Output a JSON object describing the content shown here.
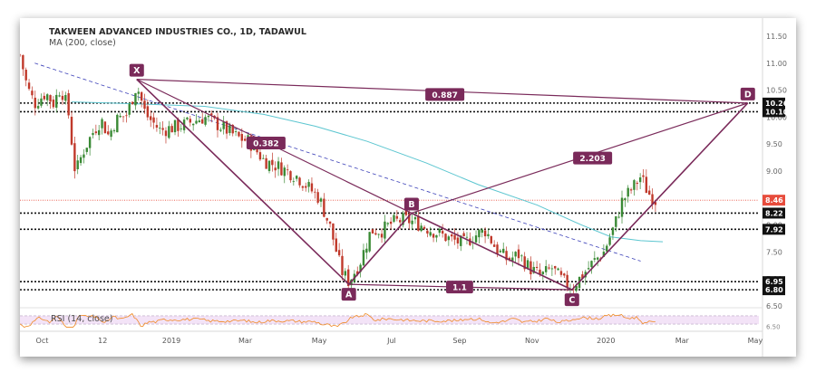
{
  "header": {
    "symbol": "TAKWEEN ADVANCED INDUSTRIES CO., 1D, TADAWUL",
    "ma_label": "MA (200, close)",
    "rsi_label": "RSI (14, close)"
  },
  "colors": {
    "pattern": "#7a2a5a",
    "candle_up": "#3a8a35",
    "candle_down": "#c0392b",
    "ma": "#5cc6d0",
    "trend": "#3b40b8",
    "current_price": "#e74c3c",
    "level_label_bg": "#111111",
    "rsi_line": "#f08a24",
    "rsi_band": "#f3e3f7"
  },
  "chart_data": {
    "type": "candlestick",
    "title": "TAKWEEN ADVANCED INDUSTRIES CO., 1D, TADAWUL",
    "indicator": "MA (200, close)",
    "ylim": [
      6.5,
      11.6
    ],
    "y_ticks": [
      "11.50",
      "11.00",
      "10.50",
      "10.00",
      "9.50",
      "9.00",
      "8.50",
      "8.00",
      "7.50",
      "7.00",
      "6.50"
    ],
    "x_ticks": [
      "Oct",
      "12",
      "2019",
      "Mar",
      "May",
      "Jul",
      "Sep",
      "Nov",
      "2020",
      "Mar",
      "May"
    ],
    "x_tick_pos": [
      0.03,
      0.112,
      0.205,
      0.305,
      0.405,
      0.503,
      0.595,
      0.693,
      0.793,
      0.896,
      0.995
    ],
    "price_levels": [
      {
        "value": 10.26,
        "label": "10.26"
      },
      {
        "value": 10.1,
        "label": "10.10"
      },
      {
        "value": 8.22,
        "label": "8.22"
      },
      {
        "value": 7.92,
        "label": "7.92"
      },
      {
        "value": 6.95,
        "label": "6.95"
      },
      {
        "value": 6.8,
        "label": "6.80"
      }
    ],
    "current_price": {
      "value": 8.46,
      "label": "8.46"
    },
    "pattern_points": [
      {
        "name": "X",
        "t": 0.158,
        "price": 10.7
      },
      {
        "name": "A",
        "t": 0.445,
        "price": 6.9
      },
      {
        "name": "B",
        "t": 0.53,
        "price": 8.22
      },
      {
        "name": "C",
        "t": 0.747,
        "price": 6.8
      },
      {
        "name": "D",
        "t": 0.985,
        "price": 10.26
      }
    ],
    "ratios": [
      {
        "label": "0.382",
        "t": 0.333,
        "price": 9.52
      },
      {
        "label": "1.1",
        "t": 0.595,
        "price": 6.85
      },
      {
        "label": "0.887",
        "t": 0.575,
        "price": 10.42
      },
      {
        "label": "2.203",
        "t": 0.775,
        "price": 9.24
      }
    ],
    "trendline": {
      "t1": 0.02,
      "p1": 11.0,
      "t2": 0.84,
      "p2": 7.33
    },
    "ma200": [
      [
        0.07,
        10.28
      ],
      [
        0.15,
        10.25
      ],
      [
        0.25,
        10.2
      ],
      [
        0.33,
        10.05
      ],
      [
        0.4,
        9.83
      ],
      [
        0.47,
        9.55
      ],
      [
        0.55,
        9.15
      ],
      [
        0.62,
        8.75
      ],
      [
        0.7,
        8.37
      ],
      [
        0.76,
        8.0
      ],
      [
        0.8,
        7.78
      ],
      [
        0.84,
        7.71
      ],
      [
        0.87,
        7.69
      ]
    ],
    "close_path": [
      [
        0.0,
        11.15
      ],
      [
        0.01,
        10.55
      ],
      [
        0.02,
        10.25
      ],
      [
        0.035,
        10.45
      ],
      [
        0.045,
        10.25
      ],
      [
        0.055,
        10.55
      ],
      [
        0.065,
        10.15
      ],
      [
        0.075,
        8.95
      ],
      [
        0.085,
        9.35
      ],
      [
        0.1,
        9.75
      ],
      [
        0.11,
        9.95
      ],
      [
        0.12,
        9.65
      ],
      [
        0.13,
        9.95
      ],
      [
        0.145,
        10.05
      ],
      [
        0.158,
        10.6
      ],
      [
        0.17,
        10.05
      ],
      [
        0.19,
        9.75
      ],
      [
        0.22,
        9.85
      ],
      [
        0.25,
        10.0
      ],
      [
        0.275,
        9.8
      ],
      [
        0.295,
        9.62
      ],
      [
        0.31,
        9.55
      ],
      [
        0.33,
        9.2
      ],
      [
        0.355,
        9.05
      ],
      [
        0.375,
        8.9
      ],
      [
        0.39,
        8.7
      ],
      [
        0.405,
        8.5
      ],
      [
        0.42,
        7.95
      ],
      [
        0.435,
        7.15
      ],
      [
        0.445,
        6.95
      ],
      [
        0.46,
        7.3
      ],
      [
        0.475,
        7.9
      ],
      [
        0.49,
        7.9
      ],
      [
        0.505,
        8.05
      ],
      [
        0.52,
        8.1
      ],
      [
        0.535,
        8.05
      ],
      [
        0.55,
        7.95
      ],
      [
        0.565,
        7.85
      ],
      [
        0.58,
        7.75
      ],
      [
        0.6,
        7.65
      ],
      [
        0.615,
        7.8
      ],
      [
        0.63,
        7.9
      ],
      [
        0.645,
        7.55
      ],
      [
        0.66,
        7.35
      ],
      [
        0.675,
        7.45
      ],
      [
        0.69,
        7.2
      ],
      [
        0.705,
        7.05
      ],
      [
        0.72,
        7.2
      ],
      [
        0.735,
        6.95
      ],
      [
        0.747,
        6.85
      ],
      [
        0.76,
        7.05
      ],
      [
        0.775,
        7.3
      ],
      [
        0.79,
        7.5
      ],
      [
        0.805,
        8.0
      ],
      [
        0.815,
        8.45
      ],
      [
        0.83,
        8.7
      ],
      [
        0.84,
        8.9
      ],
      [
        0.85,
        8.6
      ],
      [
        0.86,
        8.46
      ]
    ],
    "rsi": {
      "label": "RSI (14, close)",
      "ylim": [
        0,
        100
      ],
      "band": [
        30,
        70
      ],
      "last_t": 0.86
    }
  }
}
